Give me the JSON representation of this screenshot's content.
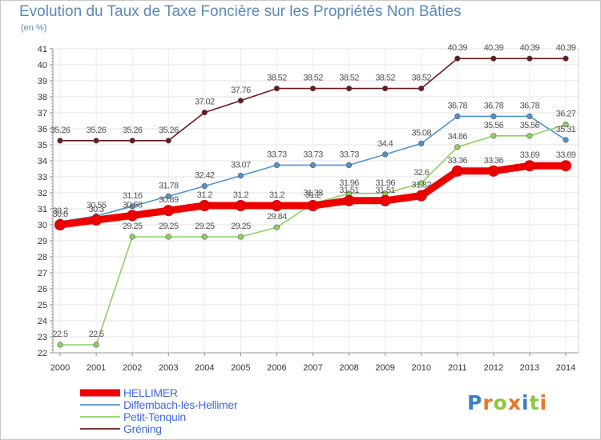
{
  "title": "Evolution du Taux de Taxe Foncière sur les Propriétés Non Bâties",
  "unit": "(en %)",
  "logo": {
    "text": "Proxiti",
    "colors": [
      "#3b7fc4",
      "#e87722",
      "#8dc63f",
      "#e87722",
      "#3b7fc4",
      "#8dc63f",
      "#e87722"
    ]
  },
  "chart_data": {
    "type": "line",
    "title": "Evolution du Taux de Taxe Foncière sur les Propriétés Non Bâties",
    "ylabel": "(en %)",
    "xlabel": "",
    "ylim": [
      22,
      41
    ],
    "yticks": [
      22,
      23,
      24,
      25,
      26,
      27,
      28,
      29,
      30,
      31,
      32,
      33,
      34,
      35,
      36,
      37,
      38,
      39,
      40,
      41
    ],
    "x": [
      "2000",
      "2001",
      "2002",
      "2003",
      "2004",
      "2005",
      "2006",
      "2007",
      "2008",
      "2009",
      "2010",
      "2011",
      "2012",
      "2013",
      "2014"
    ],
    "legend_position": "bottom-left",
    "series": [
      {
        "name": "Gréning",
        "color": "#6b1a1a",
        "values": [
          35.26,
          35.26,
          35.26,
          35.26,
          37.02,
          37.76,
          38.52,
          38.52,
          38.52,
          38.52,
          38.52,
          40.39,
          40.39,
          40.39,
          40.39
        ],
        "labels": [
          "35.26",
          "35.26",
          "35.26",
          "35.26",
          "37.02",
          "37.76",
          "38.52",
          "38.52",
          "38.52",
          "38.52",
          "38.52",
          "40.39",
          "40.39",
          "40.39",
          "40.39"
        ]
      },
      {
        "name": "Diffembach-lès-Hellimer",
        "color": "#4f94cd",
        "values": [
          30.2,
          30.55,
          31.16,
          31.78,
          32.42,
          33.07,
          33.73,
          33.73,
          33.73,
          34.4,
          35.08,
          36.78,
          36.78,
          36.78,
          35.31
        ],
        "labels": [
          "30.2",
          "30.55",
          "31.16",
          "31.78",
          "32.42",
          "33.07",
          "33.73",
          "33.73",
          "33.73",
          "34.4",
          "35.08",
          "36.78",
          "36.78",
          "36.78",
          "35.31"
        ]
      },
      {
        "name": "Petit-Tenquin",
        "color": "#8ed163",
        "values": [
          22.5,
          22.5,
          29.25,
          29.25,
          29.25,
          29.25,
          29.84,
          31.33,
          31.96,
          31.96,
          32.6,
          34.86,
          35.56,
          35.56,
          36.27
        ],
        "labels": [
          "22.5",
          "22.5",
          "29.25",
          "29.25",
          "29.25",
          "29.25",
          "29.84",
          "31.33",
          "31.96",
          "31.96",
          "32.6",
          "34.86",
          "35.56",
          "35.56",
          "36.27"
        ]
      },
      {
        "name": "HELLIMER",
        "color": "#ee0000",
        "values": [
          30.0,
          30.3,
          30.58,
          30.89,
          31.2,
          31.2,
          31.2,
          31.2,
          31.51,
          31.51,
          31.82,
          33.36,
          33.36,
          33.69,
          33.69
        ],
        "labels": [
          "30.0",
          "30.3",
          "30.58",
          "30.89",
          "31.2",
          "31.2",
          "31.2",
          "31.2",
          "31.51",
          "31.51",
          "31.82",
          "33.36",
          "33.36",
          "33.69",
          "33.69"
        ]
      }
    ],
    "legend": [
      "HELLIMER",
      "Diffembach-lès-Hellimer",
      "Petit-Tenquin",
      "Gréning"
    ]
  }
}
